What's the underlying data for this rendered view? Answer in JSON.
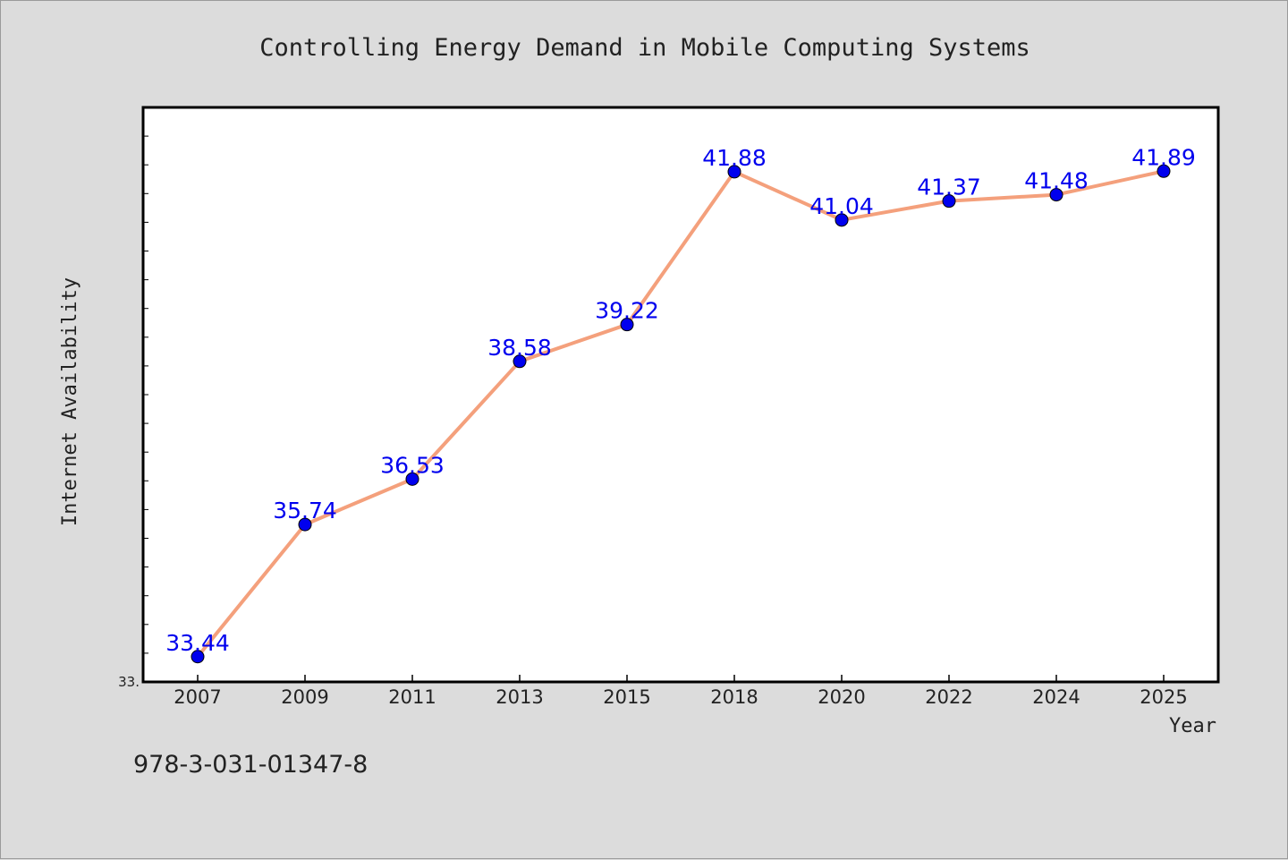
{
  "chart_data": {
    "type": "line",
    "title": "Controlling Energy Demand in Mobile Computing Systems",
    "xlabel": "Year",
    "ylabel": "Internet Availability",
    "categories": [
      "2007",
      "2009",
      "2011",
      "2013",
      "2015",
      "2018",
      "2020",
      "2022",
      "2024",
      "2025"
    ],
    "series": [
      {
        "values": [
          33.44,
          35.74,
          36.53,
          38.58,
          39.22,
          41.88,
          41.04,
          41.37,
          41.48,
          41.89
        ],
        "labels": [
          "33.44",
          "35.74",
          "36.53",
          "38.58",
          "39.22",
          "41.88",
          "41.04",
          "41.37",
          "41.48",
          "41.89"
        ]
      }
    ],
    "ylim": [
      33.0,
      43.0
    ],
    "y_tick_label": "33.",
    "grid": false,
    "legend": "none",
    "colors": {
      "line": "#f4a07c",
      "marker": "#0000ee",
      "data_label": "#0000ee",
      "background": "#dcdcdc",
      "plot_background": "#ffffff"
    }
  },
  "footer": {
    "isbn": "978-3-031-01347-8"
  }
}
